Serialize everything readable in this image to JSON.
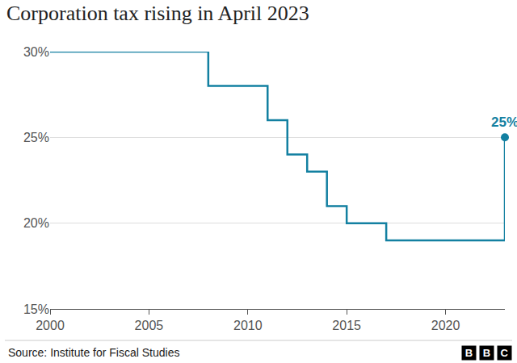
{
  "chart_data": {
    "type": "line",
    "title": "Corporation tax rising in April 2023",
    "x": [
      2000,
      2008,
      2011,
      2012,
      2013,
      2014,
      2015,
      2017,
      2023
    ],
    "values": [
      30,
      28,
      26,
      24,
      23,
      21,
      20,
      19,
      25
    ],
    "color": "#1380a1",
    "line_style": "step",
    "xlim": [
      2000,
      2023
    ],
    "xticks": [
      2000,
      2005,
      2010,
      2015,
      2020
    ],
    "ylim": [
      15,
      30
    ],
    "yticks": [
      {
        "value": 15,
        "label": "15%"
      },
      {
        "value": 20,
        "label": "20%"
      },
      {
        "value": 25,
        "label": "25%"
      },
      {
        "value": 30,
        "label": "30%"
      }
    ],
    "grid": true,
    "annotations": [
      {
        "x": 2023,
        "y": 25,
        "text": "25%"
      }
    ],
    "source": "Source: Institute for Fiscal Studies",
    "logo": "BBC"
  }
}
